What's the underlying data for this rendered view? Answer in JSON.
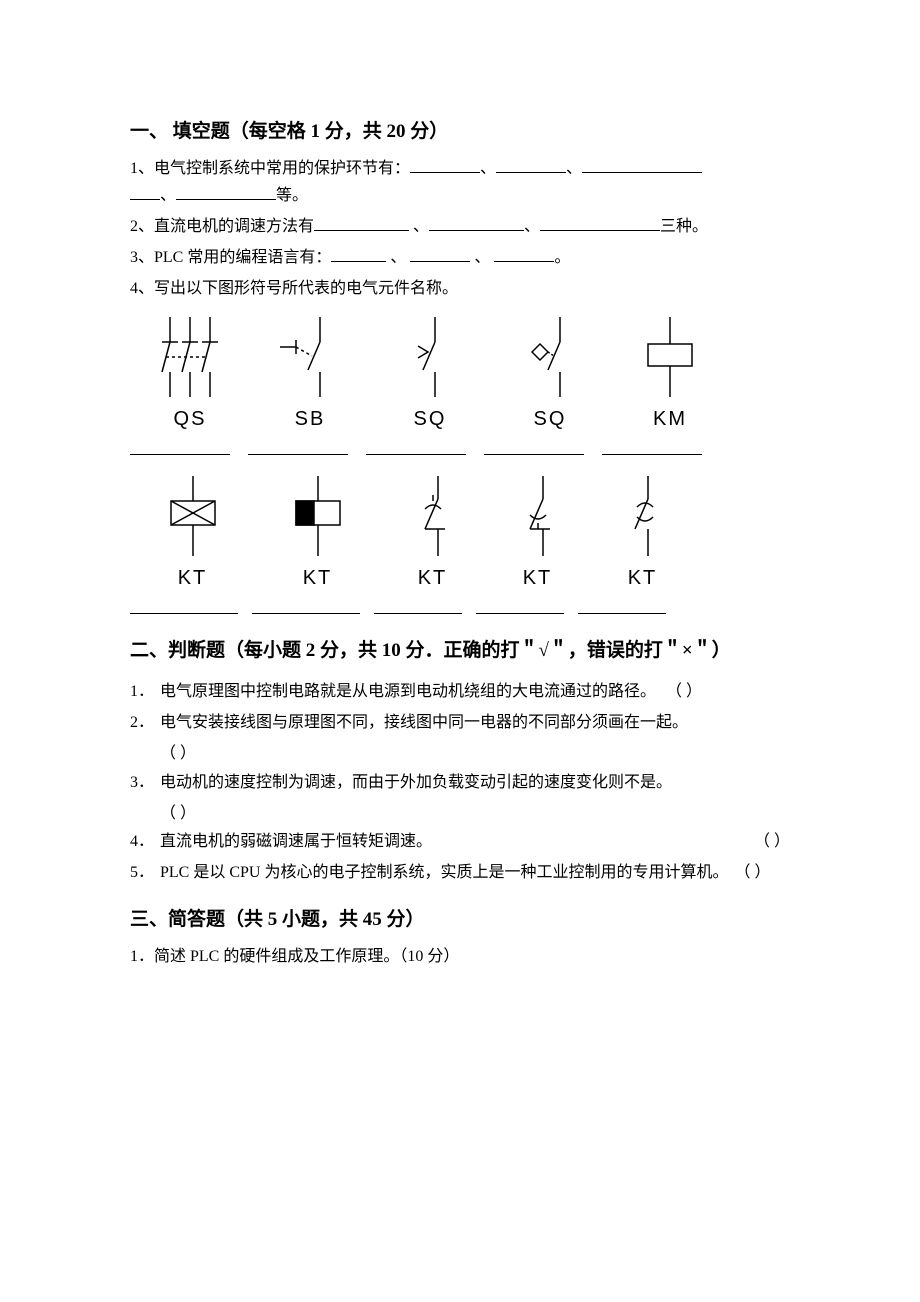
{
  "section1": {
    "title": "一、 填空题（每空格 1 分，共 20 分）",
    "q1_prefix": "1、电气控制系统中常用的保护环节有：",
    "q1_sep": "、",
    "q1_last_sep": "、",
    "q1_suffix": "等。",
    "q2_prefix": "2、直流电机的调速方法有",
    "q2_sep1": " 、",
    "q2_sep2": "、",
    "q2_suffix": "三种。",
    "q3_prefix": "3、PLC 常用的编程语言有：",
    "q3_sep": " 、 ",
    "q3_suffix": "。",
    "q4": "4、写出以下图形符号所代表的电气元件名称。",
    "row1_labels": [
      "QS",
      "SB",
      "SQ",
      "SQ",
      "KM"
    ],
    "row2_labels": [
      "KT",
      "KT",
      "KT",
      "KT",
      "KT"
    ]
  },
  "section2": {
    "title": "二、判断题（每小题 2 分，共 10 分．正确的打＂√＂，错误的打＂×＂）",
    "items": [
      {
        "n": "1．",
        "text": "电气原理图中控制电路就是从电源到电动机绕组的大电流通过的路径。",
        "paren": "（  ）",
        "inline": true
      },
      {
        "n": "2．",
        "text": "电气安装接线图与原理图不同，接线图中同一电器的不同部分须画在一起。",
        "paren": "（  ）",
        "inline": false
      },
      {
        "n": "3．",
        "text": "电动机的速度控制为调速，而由于外加负载变动引起的速度变化则不是。",
        "paren": "（  ）",
        "inline": false
      },
      {
        "n": "4．",
        "text": "直流电机的弱磁调速属于恒转矩调速。",
        "paren": "（  ）",
        "inline": true,
        "push": true
      },
      {
        "n": "5．",
        "text": "PLC 是以 CPU 为核心的电子控制系统，实质上是一种工业控制用的专用计算机。",
        "paren": "（  ）",
        "inline": true,
        "trail": true
      }
    ]
  },
  "section3": {
    "title": "三、简答题（共 5 小题，共 45 分）",
    "q1": "1．简述 PLC 的硬件组成及工作原理。（10 分）"
  },
  "svg": {
    "stroke": "#000000",
    "sw": "1.5"
  }
}
